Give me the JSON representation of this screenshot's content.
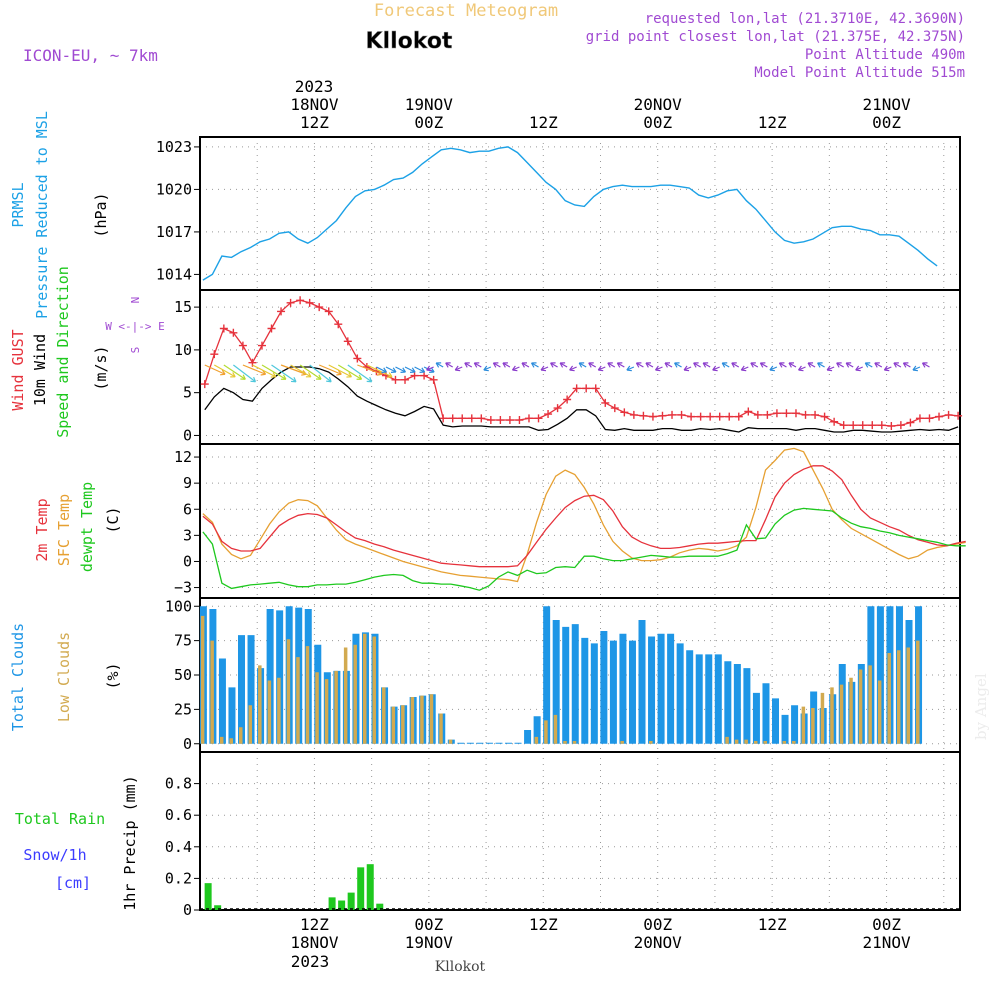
{
  "header": {
    "title": "Forecast Meteogram",
    "location": "Kllokot",
    "model": "ICON-EU, ~ 7km",
    "info_lines": [
      "requested lon,lat (21.3710E, 42.3690N)",
      "grid point closest lon,lat (21.375E, 42.375N)",
      "Point Altitude 490m",
      "Model Point Altitude 515m"
    ],
    "footer_location": "Kllokot",
    "watermark": "by Angel"
  },
  "colors": {
    "pressure": "#1ca1e6",
    "gust": "#e6323c",
    "wind": "#000000",
    "t2m": "#e6323c",
    "sfc": "#e6a032",
    "dew": "#1ec81e",
    "total_clouds": "#1e96e6",
    "low_clouds": "#d2aa50",
    "rain": "#1ec81e",
    "snow": "#3c3cff",
    "purple": "#a04ad2",
    "title": "#f0c878"
  },
  "time_axis": {
    "top_year": "2023",
    "top_labels": [
      {
        "h": 12,
        "l1": "18NOV",
        "l2": "12Z"
      },
      {
        "h": 24,
        "l1": "19NOV",
        "l2": "00Z"
      },
      {
        "h": 36,
        "l1": "",
        "l2": "12Z"
      },
      {
        "h": 48,
        "l1": "20NOV",
        "l2": "00Z"
      },
      {
        "h": 60,
        "l1": "",
        "l2": "12Z"
      },
      {
        "h": 72,
        "l1": "21NOV",
        "l2": "00Z"
      }
    ],
    "bottom_labels": [
      {
        "h": 12,
        "l1": "12Z",
        "l2": "18NOV"
      },
      {
        "h": 24,
        "l1": "00Z",
        "l2": "19NOV"
      },
      {
        "h": 36,
        "l1": "12Z",
        "l2": ""
      },
      {
        "h": 48,
        "l1": "00Z",
        "l2": "20NOV"
      },
      {
        "h": 60,
        "l1": "12Z",
        "l2": ""
      },
      {
        "h": 72,
        "l1": "00Z",
        "l2": "21NOV"
      }
    ],
    "bottom_year": "2023"
  },
  "chart_data": [
    {
      "type": "line",
      "title": "PRMSL Pressure Reduced to MSL",
      "ylabel_lines": [
        "PRMSL",
        "Pressure Reduced to MSL"
      ],
      "unit": "(hPa)",
      "yticks": [
        1014,
        1017,
        1020,
        1023
      ],
      "ylim": [
        1012.9,
        1023.7
      ],
      "series": [
        {
          "name": "PRMSL",
          "x_start": 0.3,
          "x_step": 1,
          "values": [
            1013.6,
            1014,
            1015.3,
            1015.2,
            1015.6,
            1015.9,
            1016.3,
            1016.5,
            1016.9,
            1017,
            1016.5,
            1016.2,
            1016.6,
            1017.2,
            1017.8,
            1018.7,
            1019.5,
            1019.9,
            1020,
            1020.3,
            1020.7,
            1020.8,
            1021.2,
            1021.8,
            1022.3,
            1022.8,
            1022.9,
            1022.8,
            1022.6,
            1022.7,
            1022.7,
            1022.9,
            1023,
            1022.6,
            1021.9,
            1021.2,
            1020.5,
            1020,
            1019.2,
            1018.9,
            1018.8,
            1019.5,
            1020,
            1020.2,
            1020.3,
            1020.2,
            1020.2,
            1020.2,
            1020.3,
            1020.3,
            1020.2,
            1020.1,
            1019.6,
            1019.4,
            1019.6,
            1019.9,
            1020,
            1019.2,
            1018.6,
            1017.8,
            1017,
            1016.4,
            1016.2,
            1016.3,
            1016.5,
            1016.9,
            1017.3,
            1017.4,
            1017.4,
            1017.2,
            1017.1,
            1016.8,
            1016.8,
            1016.7,
            1016.2,
            1015.7,
            1015.1,
            1014.6
          ]
        }
      ]
    },
    {
      "type": "line",
      "title": "Wind GUST and 10m Wind Speed and Direction",
      "ylabel_lines": [
        "Wind GUST",
        "10m Wind",
        "Speed and Direction"
      ],
      "unit": "(m/s)",
      "compass": [
        "N",
        "W <-|-> E",
        "S"
      ],
      "yticks": [
        0,
        5,
        10,
        15
      ],
      "ylim": [
        -1,
        17
      ],
      "series": [
        {
          "name": "Wind GUST",
          "x_start": 0.5,
          "x_step": 1,
          "values": [
            6,
            9.5,
            12.5,
            12,
            10.5,
            8.5,
            10.5,
            12.5,
            14.5,
            15.5,
            15.8,
            15.5,
            15,
            14.5,
            13,
            11,
            9,
            8,
            7.5,
            7,
            6.5,
            6.5,
            7,
            7,
            6.5,
            2,
            2,
            2,
            2,
            2,
            1.8,
            1.8,
            1.8,
            1.8,
            2,
            2,
            2.5,
            3.2,
            4.2,
            5.5,
            5.5,
            5.5,
            3.8,
            3.2,
            2.7,
            2.4,
            2.3,
            2.2,
            2.3,
            2.4,
            2.4,
            2.2,
            2.2,
            2.2,
            2.2,
            2.2,
            2.2,
            2.8,
            2.4,
            2.4,
            2.6,
            2.6,
            2.6,
            2.4,
            2.4,
            2.2,
            1.6,
            1.2,
            1.2,
            1.2,
            1.2,
            1.2,
            1.1,
            1.2,
            1.5,
            2,
            2,
            2.2,
            2.4,
            2.3
          ]
        },
        {
          "name": "10m Wind",
          "x_start": 0.5,
          "x_step": 1,
          "values": [
            3,
            4.5,
            5.5,
            5,
            4.2,
            4,
            5.5,
            6.5,
            7.4,
            8,
            8,
            8,
            7.8,
            7.4,
            6.6,
            5.7,
            4.6,
            4,
            3.5,
            3,
            2.6,
            2.3,
            2.8,
            3.4,
            3.1,
            1.2,
            1,
            1.1,
            1.1,
            1.1,
            1,
            1,
            1,
            1,
            1,
            0.6,
            0.7,
            1.3,
            2,
            3,
            3,
            2.3,
            0.7,
            0.6,
            0.8,
            0.6,
            0.6,
            0.6,
            0.8,
            0.8,
            0.6,
            0.6,
            0.8,
            0.7,
            0.8,
            0.6,
            0.4,
            0.9,
            0.8,
            0.8,
            0.8,
            0.8,
            0.6,
            0.8,
            0.8,
            0.6,
            0.4,
            0.4,
            0.6,
            0.6,
            0.5,
            0.4,
            0.4,
            0.5,
            0.6,
            0.7,
            0.6,
            0.7,
            0.6,
            1
          ]
        }
      ],
      "wind_arrows_note": "direction arrows drawn along the ~8 m/s line, colored by speed"
    },
    {
      "type": "line",
      "title": "2m Temp, SFC Temp, dewpt Temp",
      "ylabel_lines": [
        "2m Temp",
        "SFC Temp",
        "dewpt Temp"
      ],
      "unit": "(C)",
      "yticks": [
        -3,
        0,
        3,
        6,
        9,
        12
      ],
      "ylim": [
        -4.2,
        13.5
      ],
      "series": [
        {
          "name": "2m Temp",
          "x_start": 0.3,
          "x_step": 1,
          "values": [
            5.2,
            4.3,
            2.3,
            1.5,
            1.2,
            1.2,
            1.5,
            2.8,
            4.1,
            4.8,
            5.3,
            5.5,
            5.4,
            5,
            4.2,
            3.4,
            2.7,
            2.4,
            2,
            1.7,
            1.3,
            1,
            0.7,
            0.4,
            0.1,
            -0.2,
            -0.3,
            -0.4,
            -0.5,
            -0.6,
            -0.6,
            -0.6,
            -0.6,
            -0.5,
            0.7,
            2.2,
            3.7,
            5,
            6.2,
            7,
            7.5,
            7.6,
            7.1,
            5.8,
            4,
            2.8,
            2.2,
            1.8,
            1.5,
            1.5,
            1.6,
            1.8,
            2,
            2.1,
            2.1,
            2.2,
            2.3,
            2.4,
            2.4,
            4.8,
            7.4,
            9,
            10,
            10.6,
            11,
            11,
            10.4,
            9.4,
            7.6,
            6,
            5,
            4.5,
            4,
            3.6,
            3,
            2.5,
            2.2,
            1.9,
            1.8,
            2.1,
            2.3
          ]
        },
        {
          "name": "SFC Temp",
          "x_start": 0.3,
          "x_step": 1,
          "values": [
            5.5,
            4.5,
            2,
            0.8,
            0.3,
            0.7,
            2.5,
            4.3,
            5.7,
            6.7,
            7.1,
            7,
            6.4,
            5,
            3.6,
            2.5,
            2,
            1.6,
            1.2,
            0.8,
            0.4,
            0,
            -0.3,
            -0.6,
            -0.9,
            -1.2,
            -1.4,
            -1.6,
            -1.7,
            -1.8,
            -1.9,
            -2,
            -2.1,
            -2.3,
            0.8,
            4.5,
            7.7,
            9.8,
            10.5,
            10,
            8.5,
            6.6,
            4.2,
            2.3,
            1.2,
            0.4,
            0.1,
            0.1,
            0.2,
            0.5,
            1,
            1.3,
            1.5,
            1.4,
            1.2,
            1.4,
            1.8,
            2.8,
            6.2,
            10.5,
            11.6,
            12.8,
            13,
            12.6,
            10.5,
            8.4,
            6,
            4.8,
            3.8,
            3.2,
            2.6,
            2,
            1.4,
            0.8,
            0.3,
            0.6,
            1.3,
            1.6,
            1.8,
            2,
            2.2
          ]
        },
        {
          "name": "dewpt Temp",
          "x_start": 0.3,
          "x_step": 1,
          "values": [
            3.4,
            2,
            -2.5,
            -3.1,
            -2.9,
            -2.7,
            -2.6,
            -2.5,
            -2.4,
            -2.7,
            -2.9,
            -2.9,
            -2.7,
            -2.7,
            -2.6,
            -2.6,
            -2.4,
            -2.1,
            -1.8,
            -1.6,
            -1.5,
            -1.6,
            -2.2,
            -2.5,
            -2.5,
            -2.6,
            -2.6,
            -2.8,
            -3,
            -3.3,
            -2.8,
            -1.8,
            -1.2,
            -1.6,
            -1,
            -1.4,
            -1.3,
            -0.7,
            -0.6,
            -0.7,
            0.6,
            0.6,
            0.3,
            0.1,
            0.1,
            0.3,
            0.5,
            0.7,
            0.6,
            0.5,
            0.5,
            0.6,
            0.6,
            0.6,
            0.6,
            0.9,
            1.3,
            4.2,
            2.6,
            2.7,
            4.3,
            5.3,
            5.9,
            6.1,
            6,
            5.9,
            5.8,
            5,
            4.4,
            4,
            3.8,
            3.5,
            3.3,
            3,
            2.8,
            2.6,
            2.4,
            2.2,
            1.9,
            1.8,
            1.8
          ]
        }
      ]
    },
    {
      "type": "bar",
      "title": "Total Clouds and Low Clouds",
      "ylabel_lines": [
        "Total Clouds",
        "Low Clouds"
      ],
      "unit": "(%)",
      "yticks": [
        0,
        25,
        50,
        75,
        100
      ],
      "ylim": [
        -6,
        106
      ],
      "x_start": 0.3,
      "x_step": 1,
      "series": [
        {
          "name": "Total Clouds",
          "values": [
            100,
            98,
            62,
            41,
            79,
            79,
            55,
            98,
            97,
            100,
            99,
            98,
            72,
            52,
            53,
            53,
            80,
            81,
            80,
            41,
            27,
            28,
            34,
            35,
            36,
            22,
            3,
            0,
            0,
            0,
            0,
            0,
            0,
            0,
            10,
            20,
            100,
            90,
            85,
            87,
            77,
            73,
            82,
            75,
            80,
            75,
            90,
            78,
            80,
            80,
            73,
            68,
            65,
            65,
            65,
            60,
            58,
            55,
            37,
            44,
            33,
            21,
            28,
            22,
            38,
            26,
            36,
            58,
            45,
            58,
            100,
            100,
            100,
            100,
            90,
            100
          ]
        },
        {
          "name": "Low Clouds",
          "values": [
            93,
            75,
            5,
            4,
            12,
            28,
            57,
            46,
            48,
            76,
            63,
            71,
            52,
            47,
            53,
            70,
            72,
            80,
            78,
            41,
            27,
            28,
            34,
            35,
            36,
            22,
            3,
            0,
            0,
            0,
            0,
            0,
            0,
            0,
            0,
            5,
            17,
            21,
            2,
            2,
            0,
            0,
            0,
            0,
            2,
            0,
            0,
            2,
            0,
            0,
            0,
            0,
            0,
            0,
            0,
            5,
            3,
            3,
            2,
            2,
            0,
            2,
            2,
            27,
            26,
            37,
            41,
            43,
            48,
            54,
            57,
            46,
            66,
            68,
            70,
            75
          ]
        }
      ]
    },
    {
      "type": "bar",
      "title": "1hr Precip (mm)",
      "ylabel_lines": [
        "Total Rain",
        "Snow/1h",
        "[cm]"
      ],
      "unit": "1hr Precip (mm)",
      "yticks": [
        0,
        0.2,
        0.4,
        0.6,
        0.8
      ],
      "ylim": [
        0,
        1.0
      ],
      "series": [
        {
          "name": "Total Rain",
          "x": [
            0.8,
            1.8,
            13.8,
            14.8,
            15.8,
            16.8,
            17.8,
            18.8
          ],
          "values": [
            0.17,
            0.03,
            0.08,
            0.06,
            0.11,
            0.27,
            0.29,
            0.04
          ]
        },
        {
          "name": "Snow/1h",
          "x": [],
          "values": []
        }
      ]
    }
  ]
}
